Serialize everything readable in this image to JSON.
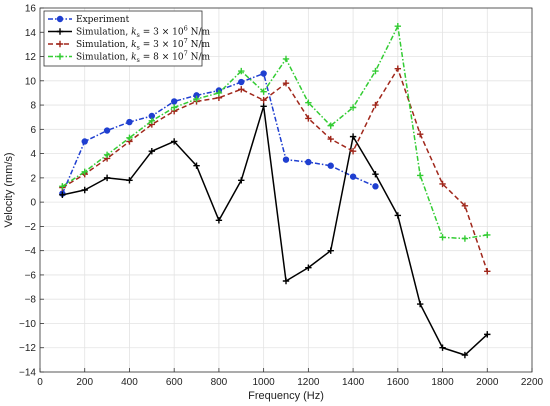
{
  "chart_data": {
    "type": "line",
    "xlabel": "Frequency (Hz)",
    "ylabel": "Velocity (mm/s)",
    "xlim": [
      0,
      2200
    ],
    "ylim": [
      -14,
      16
    ],
    "xticks": [
      0,
      200,
      400,
      600,
      800,
      1000,
      1200,
      1400,
      1600,
      1800,
      2000,
      2200
    ],
    "yticks": [
      -14,
      -12,
      -10,
      -8,
      -6,
      -4,
      -2,
      0,
      2,
      4,
      6,
      8,
      10,
      12,
      14,
      16
    ],
    "grid": true,
    "legend_position": "top-left",
    "series": [
      {
        "name": "Experiment",
        "color": "#1f3fd0",
        "line_style": "dash-dot",
        "marker": "circle",
        "x": [
          100,
          200,
          300,
          400,
          500,
          600,
          700,
          800,
          900,
          1000,
          1100,
          1200,
          1300,
          1400,
          1500
        ],
        "y": [
          0.7,
          5.0,
          5.9,
          6.6,
          7.1,
          8.3,
          8.8,
          9.2,
          9.9,
          10.6,
          3.5,
          3.3,
          3.0,
          2.1,
          1.3
        ]
      },
      {
        "name": "Simulation, k_s = 3 × 10^6 N/m",
        "color": "#000000",
        "line_style": "solid",
        "marker": "plus",
        "x": [
          100,
          200,
          300,
          400,
          500,
          600,
          700,
          800,
          900,
          1000,
          1100,
          1200,
          1300,
          1400,
          1500,
          1600,
          1700,
          1800,
          1900,
          2000
        ],
        "y": [
          0.6,
          1.0,
          2.0,
          1.8,
          4.2,
          5.0,
          3.0,
          -1.5,
          1.8,
          7.9,
          -6.5,
          -5.4,
          -4.0,
          5.4,
          2.3,
          -1.1,
          -8.4,
          -12.0,
          -12.6,
          -10.9
        ]
      },
      {
        "name": "Simulation, k_s = 3 × 10^7 N/m",
        "color": "#a0271b",
        "line_style": "dashed",
        "marker": "plus",
        "x": [
          100,
          200,
          300,
          400,
          500,
          600,
          700,
          800,
          900,
          1000,
          1100,
          1200,
          1300,
          1400,
          1500,
          1600,
          1700,
          1800,
          1900,
          2000
        ],
        "y": [
          1.2,
          2.3,
          3.6,
          5.0,
          6.4,
          7.5,
          8.3,
          8.6,
          9.3,
          8.4,
          9.8,
          6.9,
          5.2,
          4.2,
          8.0,
          11.0,
          5.6,
          1.5,
          -0.3,
          -5.7
        ]
      },
      {
        "name": "Simulation, k_s = 8 × 10^7 N/m",
        "color": "#33cc33",
        "line_style": "dash-dot",
        "marker": "plus",
        "x": [
          100,
          200,
          300,
          400,
          500,
          600,
          700,
          800,
          900,
          1000,
          1100,
          1200,
          1300,
          1400,
          1500,
          1600,
          1700,
          1800,
          1900,
          2000
        ],
        "y": [
          1.3,
          2.5,
          3.9,
          5.3,
          6.7,
          7.8,
          8.5,
          9.0,
          10.8,
          9.1,
          11.8,
          8.2,
          6.3,
          7.8,
          10.8,
          14.5,
          2.2,
          -2.9,
          -3.0,
          -2.7
        ]
      }
    ],
    "legend": [
      {
        "label": "Experiment",
        "pre": "",
        "base": "",
        "sub": "",
        "mid": "",
        "exp": "",
        "post": ""
      },
      {
        "label": "Simulation, k_s = 3 × 10^6 N/m",
        "pre": "Simulation, ",
        "base": "k",
        "sub": "s",
        "mid": " = 3 × 10",
        "exp": "6",
        "post": " N/m"
      },
      {
        "label": "Simulation, k_s = 3 × 10^7 N/m",
        "pre": "Simulation, ",
        "base": "k",
        "sub": "s",
        "mid": " = 3 × 10",
        "exp": "7",
        "post": " N/m"
      },
      {
        "label": "Simulation, k_s = 8 × 10^7 N/m",
        "pre": "Simulation, ",
        "base": "k",
        "sub": "s",
        "mid": " = 8 × 10",
        "exp": "7",
        "post": " N/m"
      }
    ]
  }
}
